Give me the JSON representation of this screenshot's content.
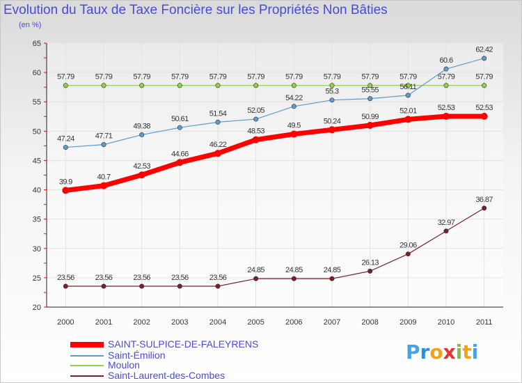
{
  "title": "Evolution du Taux de Taxe Foncière sur les Propriétés Non Bâties",
  "subtitle": "(en %)",
  "logo": "Proxiti",
  "chart_data": {
    "type": "line",
    "x": [
      "2000",
      "2001",
      "2002",
      "2003",
      "2004",
      "2005",
      "2006",
      "2007",
      "2008",
      "2009",
      "2010",
      "2011"
    ],
    "ylim": [
      20,
      65
    ],
    "yticks": [
      20,
      25,
      30,
      35,
      40,
      45,
      50,
      55,
      60,
      65
    ],
    "grid": true,
    "legend_position": "bottom-left",
    "series": [
      {
        "name": "SAINT-SULPICE-DE-FALEYRENS",
        "color": "#ff0000",
        "values": [
          39.9,
          40.7,
          42.53,
          44.66,
          46.22,
          48.53,
          49.5,
          50.24,
          50.99,
          52.01,
          52.53,
          52.53
        ],
        "labels": [
          "39.9",
          "40.7",
          "42.53",
          "44.66",
          "46.22",
          "48.53",
          "49.5",
          "50.24",
          "50.99",
          "52.01",
          "52.53",
          "52.53"
        ]
      },
      {
        "name": "Saint-Émilion",
        "color": "#5f9bd0",
        "values": [
          47.24,
          47.71,
          49.38,
          50.61,
          51.54,
          52.05,
          54.22,
          55.3,
          55.55,
          56.11,
          60.6,
          62.42
        ],
        "labels": [
          "47.24",
          "47.71",
          "49.38",
          "50.61",
          "51.54",
          "52.05",
          "54.22",
          "55.3",
          "55.55",
          "56.11",
          "60.6",
          "62.42"
        ]
      },
      {
        "name": "Moulon",
        "color": "#8fd14f",
        "values": [
          57.79,
          57.79,
          57.79,
          57.79,
          57.79,
          57.79,
          57.79,
          57.79,
          57.79,
          57.79,
          57.79,
          57.79
        ],
        "labels": [
          "57.79",
          "57.79",
          "57.79",
          "57.79",
          "57.79",
          "57.79",
          "57.79",
          "57.79",
          "57.79",
          "57.79",
          "57.79",
          "57.79"
        ]
      },
      {
        "name": "Saint-Laurent-des-Combes",
        "color": "#7a1f2a",
        "values": [
          23.56,
          23.56,
          23.56,
          23.56,
          23.56,
          24.85,
          24.85,
          24.85,
          26.13,
          29.06,
          32.97,
          36.87
        ],
        "labels": [
          "23.56",
          "23.56",
          "23.56",
          "23.56",
          "23.56",
          "24.85",
          "24.85",
          "24.85",
          "26.13",
          "29.06",
          "32.97",
          "36.87"
        ]
      }
    ]
  },
  "legend": [
    {
      "label": "SAINT-SULPICE-DE-FALEYRENS",
      "color": "#ff0000"
    },
    {
      "label": "Saint-Émilion",
      "color": "#5f9bd0"
    },
    {
      "label": "Moulon",
      "color": "#8fd14f"
    },
    {
      "label": "Saint-Laurent-des-Combes",
      "color": "#7a1f2a"
    }
  ]
}
